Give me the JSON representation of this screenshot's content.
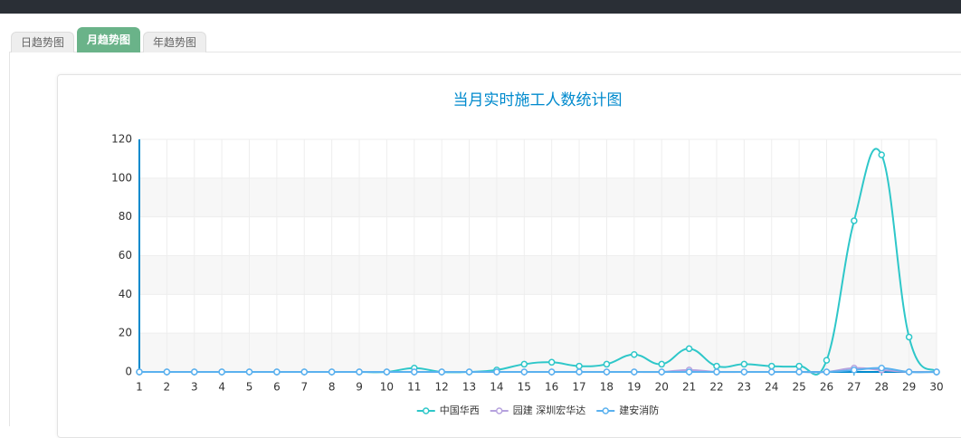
{
  "tabs": [
    "日趋势图",
    "月趋势图",
    "年趋势图"
  ],
  "chart_data": {
    "type": "line",
    "title": "当月实时施工人数统计图",
    "categories": [
      "1",
      "2",
      "3",
      "4",
      "5",
      "6",
      "7",
      "8",
      "9",
      "10",
      "11",
      "12",
      "13",
      "14",
      "15",
      "16",
      "17",
      "18",
      "19",
      "20",
      "21",
      "22",
      "23",
      "24",
      "25",
      "26",
      "27",
      "28",
      "29",
      "30"
    ],
    "series": [
      {
        "name": "中国华西",
        "color": "#2ec7c9",
        "values": [
          0,
          0,
          0,
          0,
          0,
          0,
          0,
          0,
          0,
          0,
          2,
          0,
          0,
          1,
          4,
          5,
          3,
          4,
          9,
          4,
          12,
          3,
          4,
          3,
          3,
          6,
          78,
          112,
          18,
          0
        ]
      },
      {
        "name": "园建 深圳宏华达",
        "color": "#b6a2de",
        "values": [
          0,
          0,
          0,
          0,
          0,
          0,
          0,
          0,
          0,
          0,
          0,
          0,
          0,
          0,
          0,
          0,
          0,
          0,
          0,
          0,
          1,
          0,
          0,
          0,
          0,
          0,
          2,
          1,
          0,
          0
        ]
      },
      {
        "name": "建安消防",
        "color": "#5ab1ef",
        "values": [
          0,
          0,
          0,
          0,
          0,
          0,
          0,
          0,
          0,
          0,
          0,
          0,
          0,
          0,
          0,
          0,
          0,
          0,
          0,
          0,
          0,
          0,
          0,
          0,
          0,
          0,
          1,
          2,
          0,
          0
        ]
      }
    ],
    "ylim": [
      0,
      120
    ],
    "yticks": [
      0,
      20,
      40,
      60,
      80,
      100,
      120
    ],
    "grid": true,
    "legend": "bottom"
  }
}
